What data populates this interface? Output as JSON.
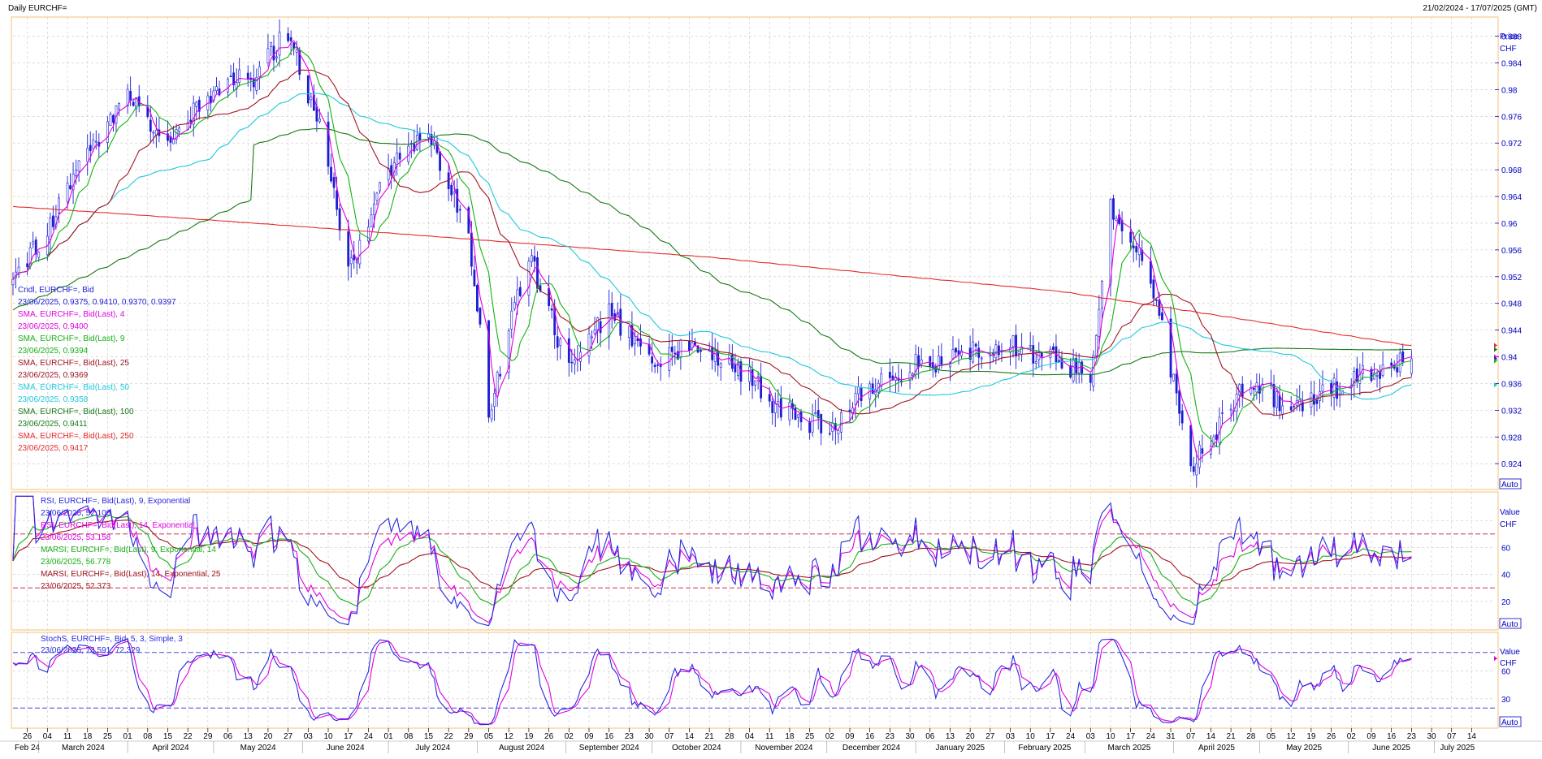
{
  "header": {
    "title": "Daily EURCHF=",
    "date_range": "21/02/2024 - 17/07/2025 (GMT)"
  },
  "colors": {
    "candle": "#1c1cd4",
    "sma4": "#e000e0",
    "sma9": "#13b313",
    "sma25": "#a01520",
    "sma50": "#1ec8dc",
    "sma100": "#157a15",
    "sma250": "#e52c2c",
    "rsi9": "#2828e0",
    "rsi14": "#e000e0",
    "marsi9": "#16b016",
    "marsi14": "#a01520",
    "stoch_k": "#2828e0",
    "stoch_d": "#e000e0",
    "grid": "#c8c8c8",
    "panel_border": "#f5c27a",
    "ref_line_red": "#c0143c",
    "ref_line_blue": "#3030c0"
  },
  "price_panel": {
    "axis_title": "Price",
    "axis_unit": "CHF",
    "auto_label": "Auto",
    "ticks": [
      "0.988",
      "0.984",
      "0.98",
      "0.976",
      "0.972",
      "0.968",
      "0.964",
      "0.96",
      "0.956",
      "0.952",
      "0.948",
      "0.944",
      "0.94",
      "0.936",
      "0.932",
      "0.928",
      "0.924"
    ],
    "legend": [
      {
        "name": "Cndl, EURCHF=, Bid",
        "value": "23/06/2025, 0.9375, 0.9410, 0.9370, 0.9397",
        "color_key": "candle"
      },
      {
        "name": "SMA, EURCHF=, Bid(Last), 4",
        "value": "23/06/2025, 0.9400",
        "color_key": "sma4"
      },
      {
        "name": "SMA, EURCHF=, Bid(Last), 9",
        "value": "23/06/2025, 0.9394",
        "color_key": "sma9"
      },
      {
        "name": "SMA, EURCHF=, Bid(Last), 25",
        "value": "23/06/2025, 0.9369",
        "color_key": "sma25"
      },
      {
        "name": "SMA, EURCHF=, Bid(Last), 50",
        "value": "23/06/2025, 0.9358",
        "color_key": "sma50"
      },
      {
        "name": "SMA, EURCHF=, Bid(Last), 100",
        "value": "23/06/2025, 0.9411",
        "color_key": "sma100"
      },
      {
        "name": "SMA, EURCHF=, Bid(Last), 250",
        "value": "23/06/2025, 0.9417",
        "color_key": "sma250"
      }
    ]
  },
  "rsi_panel": {
    "axis_title": "Value",
    "axis_unit": "CHF",
    "auto_label": "Auto",
    "ticks": [
      "60",
      "40",
      "20"
    ],
    "ref_levels": [
      70,
      30
    ],
    "legend": [
      {
        "name": "RSI, EURCHF=, Bid(Last), 9, Exponential",
        "value": "23/06/2025, 52.100",
        "color_key": "rsi9"
      },
      {
        "name": "RSI, EURCHF=, Bid(Last), 14, Exponential",
        "value": "23/06/2025, 53.158",
        "color_key": "rsi14"
      },
      {
        "name": "MARSI, EURCHF=, Bid(Last), 9, Exponential, 14",
        "value": "23/06/2025, 56.778",
        "color_key": "marsi9"
      },
      {
        "name": "MARSI, EURCHF=, Bid(Last), 14, Exponential, 25",
        "value": "23/06/2025, 52.373",
        "color_key": "marsi14"
      }
    ]
  },
  "stoch_panel": {
    "axis_title": "Value",
    "axis_unit": "CHF",
    "auto_label": "Auto",
    "ticks": [
      "60",
      "30"
    ],
    "ref_levels": [
      80,
      20
    ],
    "legend": [
      {
        "name": "StochS, EURCHF=, Bid, 5, 3, Simple, 3",
        "value": "23/06/2025, 73.591, 72.329",
        "color_key": "stoch_k"
      }
    ]
  },
  "x_axis": {
    "day_labels": [
      "26",
      "04",
      "11",
      "18",
      "25",
      "01",
      "08",
      "15",
      "22",
      "29",
      "06",
      "13",
      "20",
      "27",
      "03",
      "10",
      "17",
      "24",
      "01",
      "08",
      "15",
      "22",
      "29",
      "05",
      "12",
      "19",
      "26",
      "02",
      "09",
      "16",
      "23",
      "30",
      "07",
      "14",
      "21",
      "28",
      "04",
      "11",
      "18",
      "25",
      "02",
      "09",
      "16",
      "23",
      "30",
      "06",
      "13",
      "20",
      "27",
      "03",
      "10",
      "17",
      "24",
      "03",
      "10",
      "17",
      "24",
      "31",
      "07",
      "14",
      "21",
      "28",
      "05",
      "12",
      "19",
      "26",
      "02",
      "09",
      "16",
      "23",
      "30",
      "07",
      "14"
    ],
    "month_labels": [
      "Feb 24",
      "March 2024",
      "April 2024",
      "May 2024",
      "June 2024",
      "July 2024",
      "August 2024",
      "September 2024",
      "October 2024",
      "November 2024",
      "December 2024",
      "January 2025",
      "February 2025",
      "March 2025",
      "April 2025",
      "May 2025",
      "June 2025",
      "July 2025"
    ]
  },
  "chart_data": {
    "type": "line",
    "title": "Daily EURCHF=",
    "date_range": "21/02/2024 - 17/07/2025 (GMT)",
    "price": {
      "unit": "CHF",
      "ylim": [
        0.9205,
        0.9905
      ],
      "x_dates": [
        "2024-02-21",
        "2024-03-04",
        "2024-03-18",
        "2024-04-01",
        "2024-04-15",
        "2024-05-01",
        "2024-05-15",
        "2024-05-27",
        "2024-06-10",
        "2024-06-17",
        "2024-07-01",
        "2024-07-15",
        "2024-07-29",
        "2024-08-05",
        "2024-08-19",
        "2024-09-02",
        "2024-09-16",
        "2024-10-01",
        "2024-10-15",
        "2024-11-01",
        "2024-11-15",
        "2024-12-02",
        "2024-12-16",
        "2025-01-02",
        "2025-01-15",
        "2025-02-01",
        "2025-02-15",
        "2025-03-03",
        "2025-03-10",
        "2025-03-24",
        "2025-04-07",
        "2025-04-14",
        "2025-04-28",
        "2025-05-12",
        "2025-05-26",
        "2025-06-09",
        "2025-06-23"
      ],
      "close_profile": [
        0.952,
        0.959,
        0.97,
        0.979,
        0.972,
        0.98,
        0.982,
        0.989,
        0.97,
        0.952,
        0.968,
        0.974,
        0.958,
        0.932,
        0.955,
        0.938,
        0.947,
        0.938,
        0.942,
        0.938,
        0.932,
        0.929,
        0.936,
        0.939,
        0.94,
        0.942,
        0.94,
        0.937,
        0.962,
        0.952,
        0.924,
        0.928,
        0.937,
        0.932,
        0.935,
        0.938,
        0.9397
      ],
      "last_candle": {
        "date": "2025-06-23",
        "open": 0.9375,
        "high": 0.941,
        "low": 0.937,
        "close": 0.9397
      },
      "sma_last": {
        "4": 0.94,
        "9": 0.9394,
        "25": 0.9369,
        "50": 0.9358,
        "100": 0.9411,
        "250": 0.9417
      }
    },
    "rsi": {
      "ylim": [
        0,
        100
      ],
      "ref_levels": [
        70,
        30
      ],
      "last": {
        "rsi9": 52.1,
        "rsi14": 53.158,
        "marsi9": 56.778,
        "marsi14": 52.373
      }
    },
    "stochastic": {
      "ylim": [
        0,
        100
      ],
      "ref_levels": [
        80,
        20
      ],
      "last": {
        "k": 73.591,
        "d": 72.329
      }
    }
  }
}
